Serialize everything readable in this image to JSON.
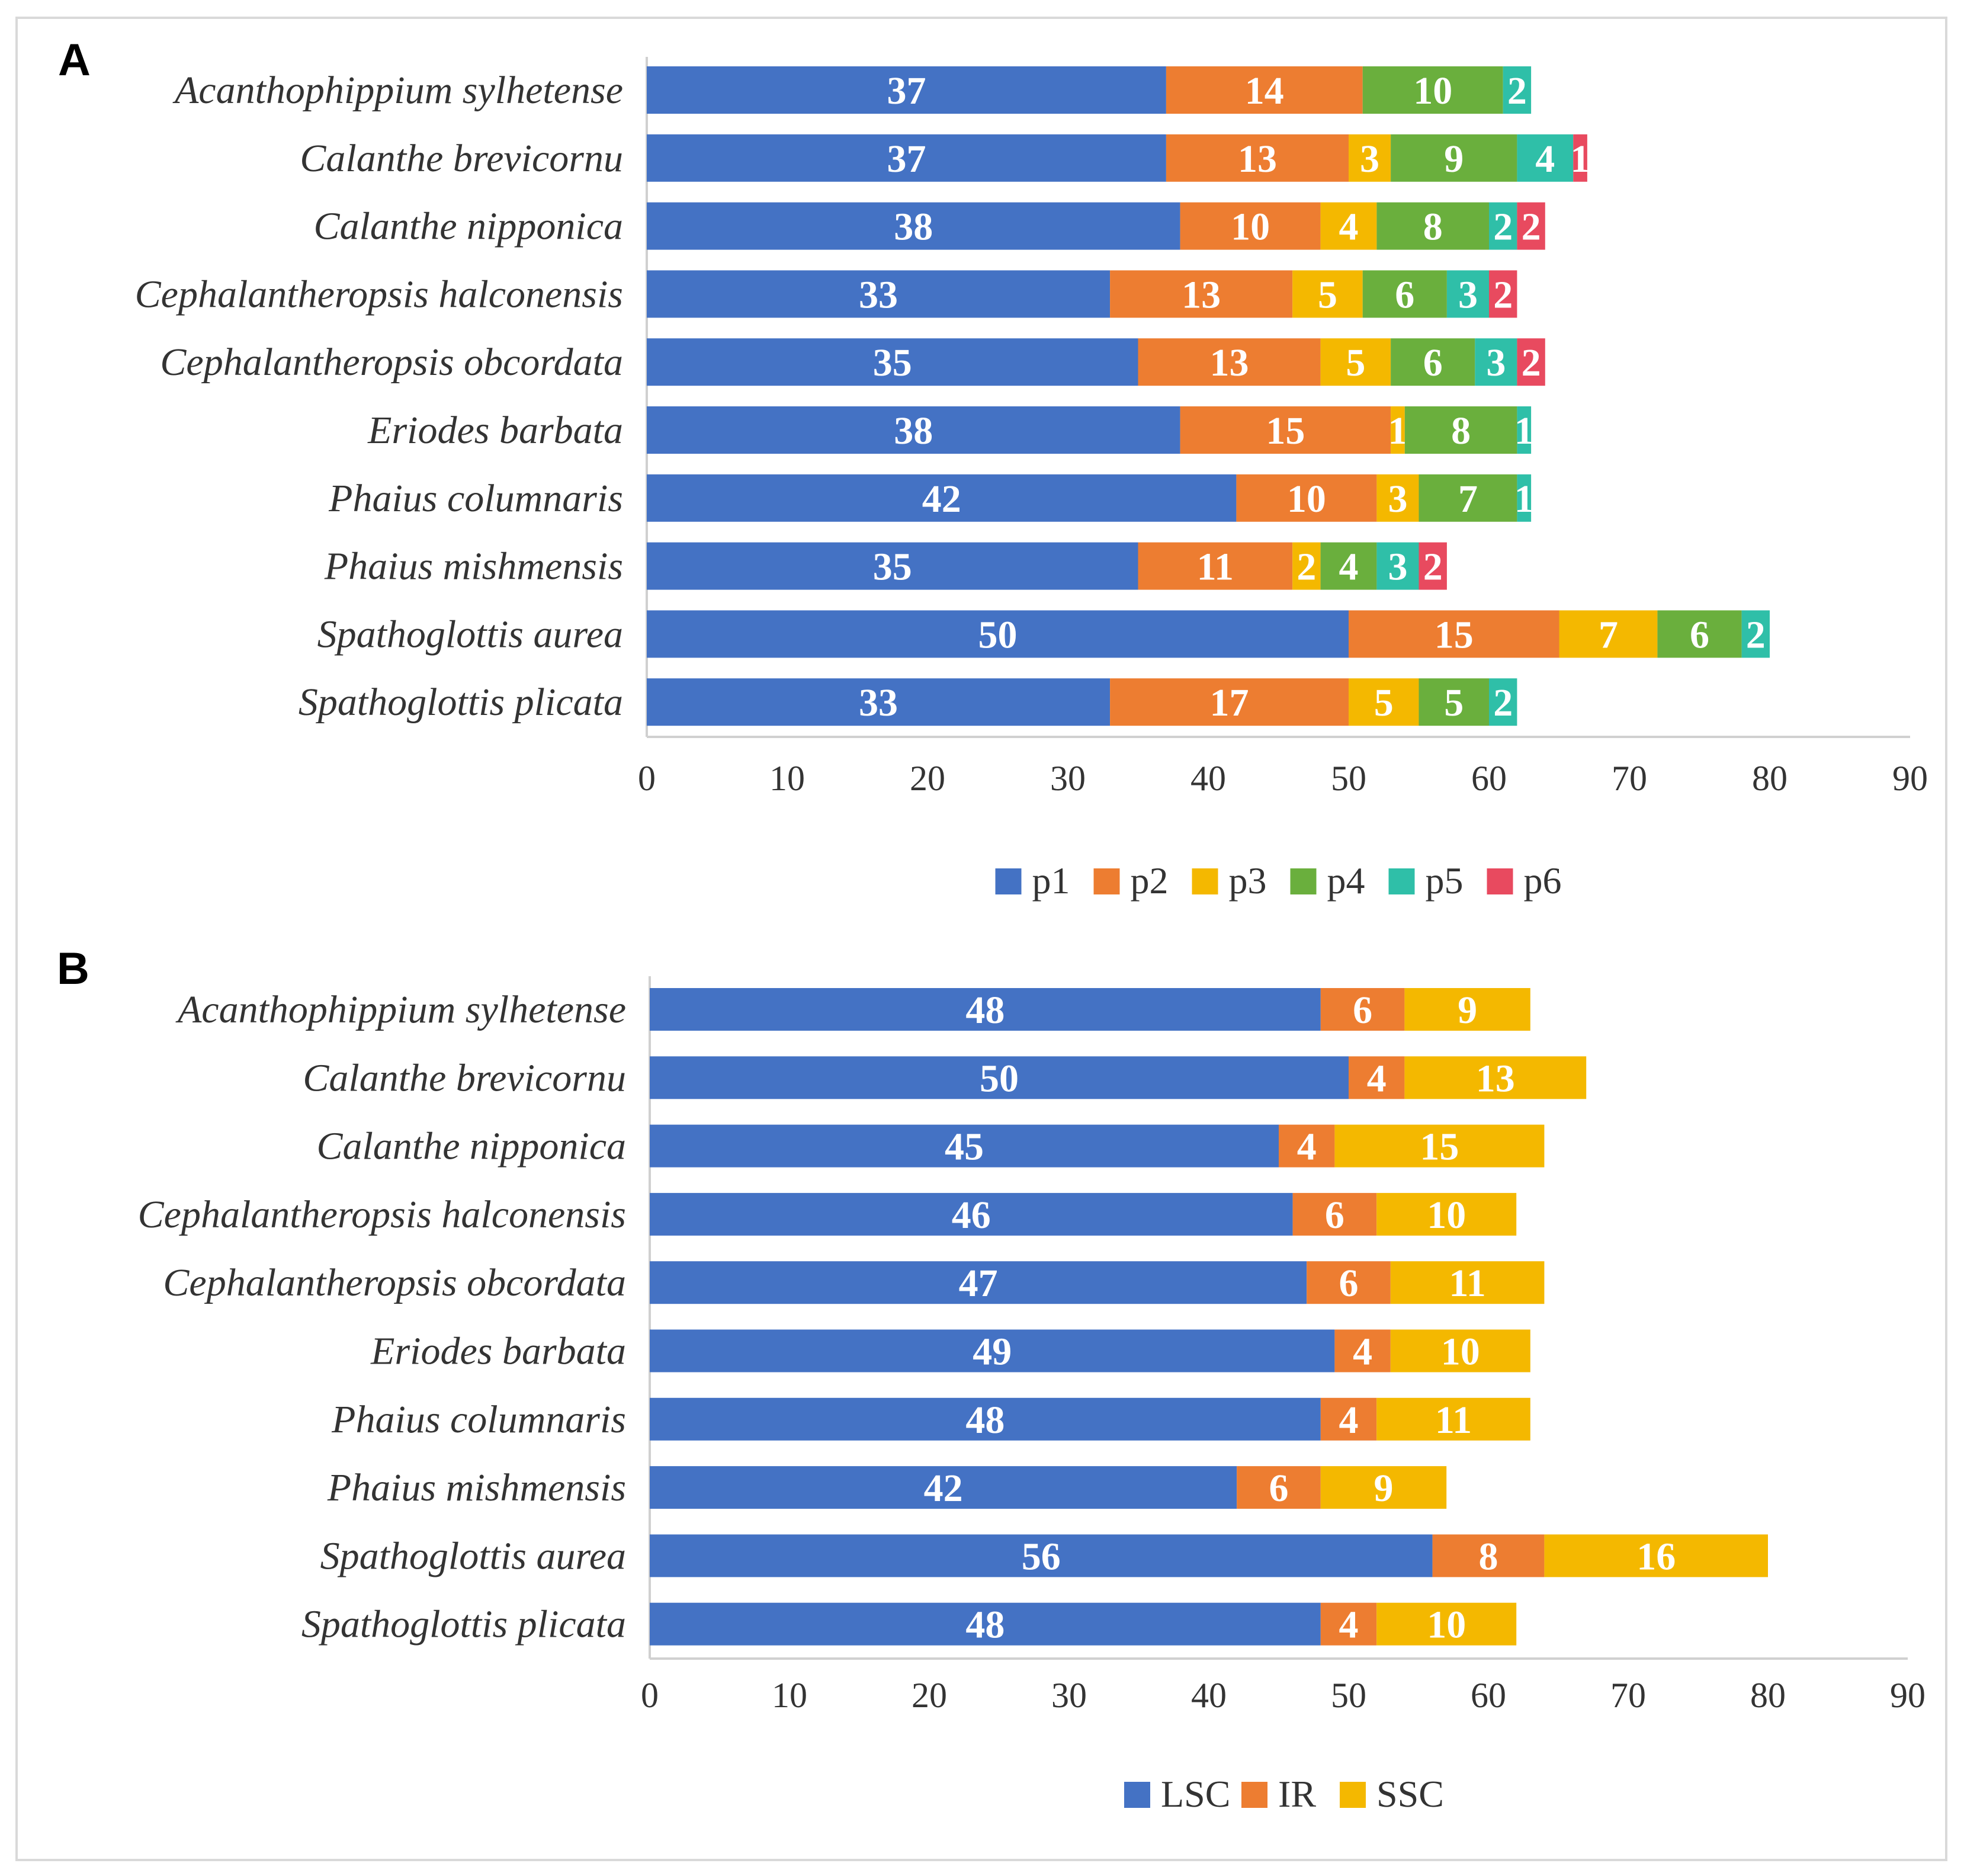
{
  "chart_data": [
    {
      "panel": "A",
      "type": "bar",
      "orientation": "horizontal",
      "stacked": true,
      "categories": [
        "Acanthophippium sylhetense",
        "Calanthe brevicornu",
        "Calanthe nipponica",
        "Cephalantheropsis halconensis",
        "Cephalantheropsis obcordata",
        "Eriodes barbata",
        "Phaius columnaris",
        "Phaius mishmensis",
        "Spathoglottis aurea",
        "Spathoglottis plicata"
      ],
      "series": [
        {
          "name": "p1",
          "color": "#4472c4",
          "values": [
            37,
            37,
            38,
            33,
            35,
            38,
            42,
            35,
            50,
            33
          ]
        },
        {
          "name": "p2",
          "color": "#ed7d31",
          "values": [
            14,
            13,
            10,
            13,
            13,
            15,
            10,
            11,
            15,
            17
          ]
        },
        {
          "name": "p3",
          "color": "#f4b800",
          "values": [
            0,
            3,
            4,
            5,
            5,
            1,
            3,
            2,
            7,
            5
          ]
        },
        {
          "name": "p4",
          "color": "#6aaf3d",
          "values": [
            10,
            9,
            8,
            6,
            6,
            8,
            7,
            4,
            6,
            5
          ]
        },
        {
          "name": "p5",
          "color": "#2fbfa8",
          "values": [
            2,
            4,
            2,
            3,
            3,
            1,
            1,
            3,
            2,
            2
          ]
        },
        {
          "name": "p6",
          "color": "#e84a5f",
          "values": [
            0,
            1,
            2,
            2,
            2,
            0,
            0,
            2,
            0,
            0
          ]
        }
      ],
      "xlim": [
        0,
        90
      ],
      "xticks": [
        0,
        10,
        20,
        30,
        40,
        50,
        60,
        70,
        80,
        90
      ],
      "legend": "bottom",
      "grid": false
    },
    {
      "panel": "B",
      "type": "bar",
      "orientation": "horizontal",
      "stacked": true,
      "categories": [
        "Acanthophippium sylhetense",
        "Calanthe brevicornu",
        "Calanthe nipponica",
        "Cephalantheropsis halconensis",
        "Cephalantheropsis obcordata",
        "Eriodes barbata",
        "Phaius columnaris",
        "Phaius mishmensis",
        "Spathoglottis aurea",
        "Spathoglottis plicata"
      ],
      "series": [
        {
          "name": "LSC",
          "color": "#4472c4",
          "values": [
            48,
            50,
            45,
            46,
            47,
            49,
            48,
            42,
            56,
            48
          ]
        },
        {
          "name": "IR",
          "color": "#ed7d31",
          "values": [
            6,
            4,
            4,
            6,
            6,
            4,
            4,
            6,
            8,
            4
          ]
        },
        {
          "name": "SSC",
          "color": "#f4b800",
          "values": [
            9,
            13,
            15,
            10,
            11,
            10,
            11,
            9,
            16,
            10
          ]
        }
      ],
      "xlim": [
        0,
        90
      ],
      "xticks": [
        0,
        10,
        20,
        30,
        40,
        50,
        60,
        70,
        80,
        90
      ],
      "legend": "bottom",
      "grid": false
    }
  ]
}
